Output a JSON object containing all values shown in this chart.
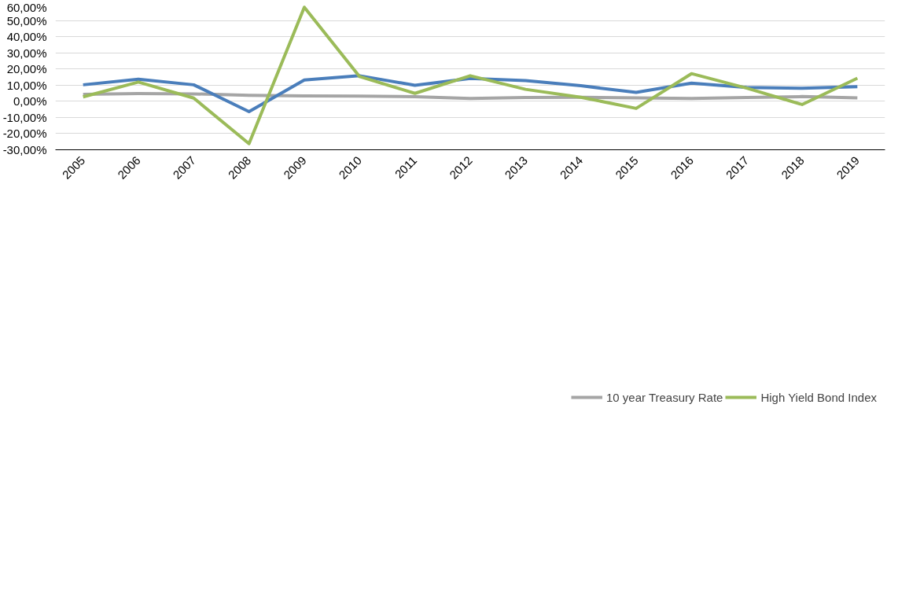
{
  "chart_data": {
    "type": "line",
    "categories": [
      "2005",
      "2006",
      "2007",
      "2008",
      "2009",
      "2010",
      "2011",
      "2012",
      "2013",
      "2014",
      "2015",
      "2016",
      "2017",
      "2018",
      "2019"
    ],
    "series": [
      {
        "name": "10 year Treasury Rate",
        "color": "#a5a5a5",
        "values": [
          4.3,
          4.8,
          4.6,
          3.7,
          3.3,
          3.2,
          2.8,
          1.8,
          2.4,
          2.5,
          2.1,
          1.8,
          2.3,
          2.9,
          2.1
        ]
      },
      {
        "color": "#4a7ebb",
        "values": [
          10.2,
          13.7,
          10.2,
          -6.4,
          13.2,
          15.8,
          9.9,
          14.1,
          12.8,
          9.6,
          5.5,
          11.2,
          8.5,
          8.1,
          9.0
        ]
      },
      {
        "name": "High Yield Bond Index",
        "color": "#9bbb59",
        "values": [
          2.7,
          11.9,
          2.0,
          -26.2,
          58.2,
          15.3,
          4.9,
          15.8,
          7.4,
          2.5,
          -4.4,
          17.1,
          8.1,
          -2.0,
          14.3
        ]
      }
    ],
    "ylim": [
      -30,
      60
    ],
    "yticks": [
      {
        "value": -30,
        "label": "-30,00%"
      },
      {
        "value": -20,
        "label": "-20,00%"
      },
      {
        "value": -10,
        "label": "-10,00%"
      },
      {
        "value": 0,
        "label": "0,00%"
      },
      {
        "value": 10,
        "label": "10,00%"
      },
      {
        "value": 20,
        "label": "20,00%"
      },
      {
        "value": 30,
        "label": "30,00%"
      },
      {
        "value": 40,
        "label": "40,00%"
      },
      {
        "value": 50,
        "label": "50,00%"
      },
      {
        "value": 60,
        "label": "60,00%"
      }
    ],
    "grid": "y",
    "legend": "bottom",
    "marker": "none",
    "line_style": "solid"
  }
}
